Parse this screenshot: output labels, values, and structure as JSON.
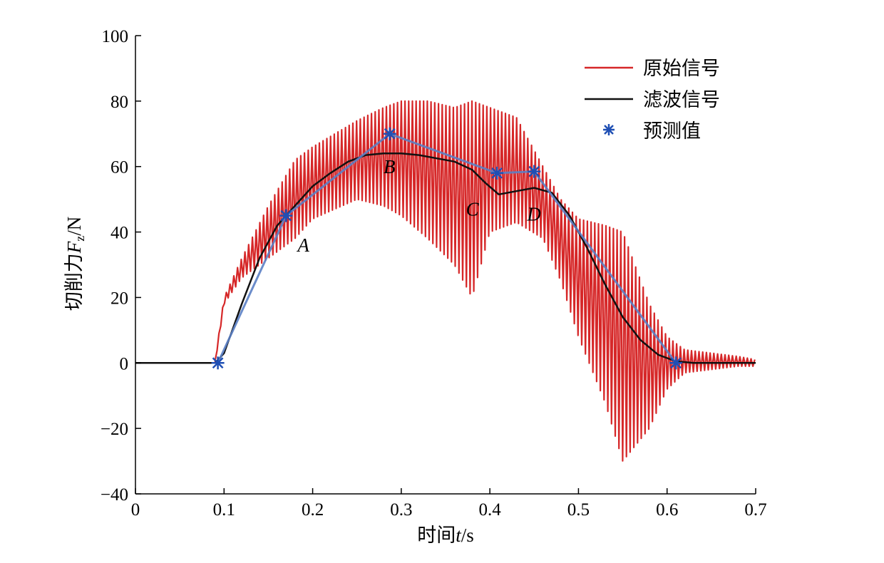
{
  "chart_data": {
    "type": "line",
    "title": "",
    "xlabel": {
      "prefix": "时间",
      "var": "t",
      "suffix": "/s"
    },
    "ylabel": {
      "prefix": "切削力",
      "var": "F",
      "sub": "z",
      "suffix": "/N"
    },
    "xlim": [
      0,
      0.7
    ],
    "ylim": [
      -40,
      100
    ],
    "xticks": [
      0,
      0.1,
      0.2,
      0.3,
      0.4,
      0.5,
      0.6,
      0.7
    ],
    "xtick_labels": [
      "0",
      "0.1",
      "0.2",
      "0.3",
      "0.4",
      "0.5",
      "0.6",
      "0.7"
    ],
    "yticks": [
      -40,
      -20,
      0,
      20,
      40,
      60,
      80,
      100
    ],
    "ytick_labels": [
      "−40",
      "−20",
      "0",
      "20",
      "40",
      "60",
      "80",
      "100"
    ],
    "grid": false,
    "legend_position": "top-right",
    "series": [
      {
        "name": "原始信号",
        "kind": "line",
        "color": "#d62728",
        "envelope": {
          "x": [
            0.09,
            0.1,
            0.12,
            0.15,
            0.18,
            0.2,
            0.25,
            0.28,
            0.3,
            0.33,
            0.36,
            0.38,
            0.4,
            0.43,
            0.46,
            0.48,
            0.5,
            0.53,
            0.55,
            0.58,
            0.6,
            0.62,
            0.65,
            0.68,
            0.7
          ],
          "upper": [
            1,
            20,
            32,
            48,
            62,
            66,
            74,
            78,
            80,
            80,
            78,
            80,
            78,
            75,
            60,
            50,
            44,
            42,
            40,
            18,
            8,
            4,
            3,
            2,
            1
          ],
          "lower": [
            0,
            18,
            26,
            32,
            38,
            44,
            50,
            48,
            45,
            38,
            30,
            20,
            40,
            43,
            38,
            25,
            8,
            -12,
            -30,
            -20,
            -8,
            -3,
            -2,
            -1,
            -1
          ]
        }
      },
      {
        "name": "滤波信号",
        "kind": "line",
        "color": "#111111",
        "x": [
          0,
          0.09,
          0.1,
          0.12,
          0.14,
          0.16,
          0.18,
          0.2,
          0.22,
          0.24,
          0.26,
          0.28,
          0.3,
          0.32,
          0.34,
          0.36,
          0.38,
          0.395,
          0.41,
          0.43,
          0.45,
          0.47,
          0.49,
          0.51,
          0.53,
          0.55,
          0.57,
          0.59,
          0.61,
          0.63,
          0.65,
          0.7
        ],
        "y": [
          0,
          0,
          3,
          18,
          32,
          42,
          48,
          54,
          58,
          61.5,
          63.5,
          64,
          64,
          63.5,
          62.5,
          61.5,
          59,
          55,
          51.5,
          52.5,
          53.5,
          52,
          45,
          35,
          24,
          14,
          7,
          2.5,
          0.5,
          0,
          0,
          0
        ]
      },
      {
        "name": "预测值",
        "kind": "scatter-line",
        "color": "#1f4fb4",
        "x": [
          0.093,
          0.17,
          0.287,
          0.408,
          0.45,
          0.61
        ],
        "y": [
          0,
          45,
          70,
          58,
          58.5,
          0
        ]
      }
    ],
    "annotations": [
      {
        "text": "A",
        "x": 0.183,
        "y": 34
      },
      {
        "text": "B",
        "x": 0.28,
        "y": 58
      },
      {
        "text": "C",
        "x": 0.373,
        "y": 45
      },
      {
        "text": "D",
        "x": 0.442,
        "y": 43.5
      }
    ]
  }
}
